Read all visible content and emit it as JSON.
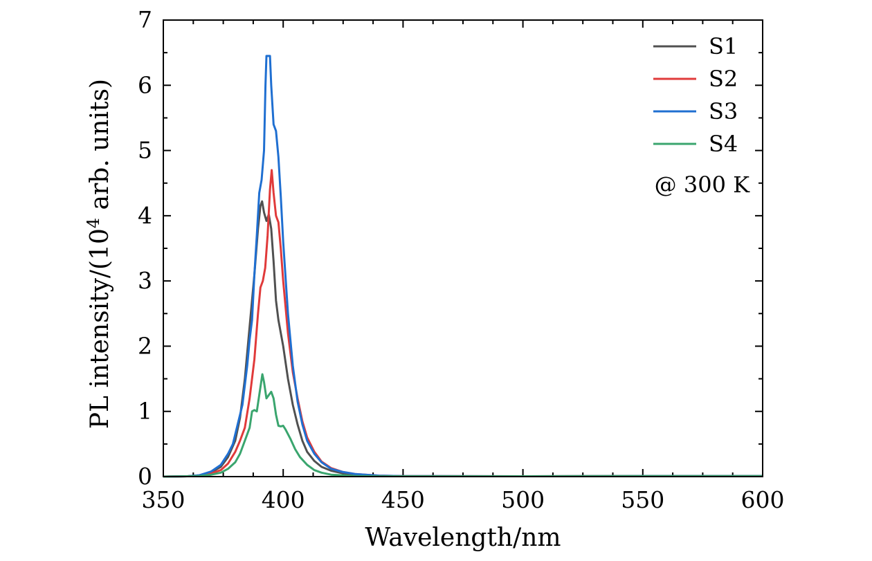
{
  "chart_data": {
    "type": "line",
    "title": "",
    "xlabel": "Wavelength/nm",
    "ylabel_prefix": "PL intensity/(10",
    "ylabel_exponent": "4",
    "ylabel_suffix": " arb. units)",
    "xlim": [
      350,
      600
    ],
    "ylim": [
      0,
      7
    ],
    "x_ticks": [
      350,
      400,
      450,
      500,
      550,
      600
    ],
    "x_minor_step": 12.5,
    "y_ticks": [
      0,
      1,
      2,
      3,
      4,
      5,
      6,
      7
    ],
    "y_minor_step": 0.5,
    "legend_position": "top-right",
    "annotation": "@ 300 K",
    "series": [
      {
        "name": "S1",
        "color": "#505050",
        "points": [
          [
            350,
            0
          ],
          [
            360,
            0.005
          ],
          [
            365,
            0.02
          ],
          [
            370,
            0.07
          ],
          [
            374,
            0.15
          ],
          [
            377,
            0.3
          ],
          [
            380,
            0.55
          ],
          [
            382,
            0.9
          ],
          [
            384,
            1.5
          ],
          [
            386,
            2.3
          ],
          [
            388,
            3.1
          ],
          [
            389.5,
            3.8
          ],
          [
            390.5,
            4.15
          ],
          [
            391.2,
            4.22
          ],
          [
            392,
            4.05
          ],
          [
            393,
            3.92
          ],
          [
            394,
            4.02
          ],
          [
            395,
            3.8
          ],
          [
            396,
            3.3
          ],
          [
            397,
            2.7
          ],
          [
            398,
            2.4
          ],
          [
            400,
            2.0
          ],
          [
            402,
            1.5
          ],
          [
            404,
            1.1
          ],
          [
            406,
            0.8
          ],
          [
            408,
            0.55
          ],
          [
            410,
            0.38
          ],
          [
            413,
            0.24
          ],
          [
            416,
            0.15
          ],
          [
            420,
            0.09
          ],
          [
            425,
            0.05
          ],
          [
            430,
            0.03
          ],
          [
            440,
            0.01
          ],
          [
            450,
            0.005
          ],
          [
            500,
            0.005
          ],
          [
            550,
            0.01
          ],
          [
            600,
            0.01
          ]
        ]
      },
      {
        "name": "S2",
        "color": "#e03a3a",
        "points": [
          [
            350,
            0
          ],
          [
            360,
            0.005
          ],
          [
            365,
            0.015
          ],
          [
            370,
            0.05
          ],
          [
            374,
            0.1
          ],
          [
            377,
            0.2
          ],
          [
            380,
            0.38
          ],
          [
            382,
            0.55
          ],
          [
            384,
            0.75
          ],
          [
            386,
            1.2
          ],
          [
            388,
            1.8
          ],
          [
            389.5,
            2.5
          ],
          [
            390.5,
            2.9
          ],
          [
            391.5,
            3.0
          ],
          [
            392.5,
            3.2
          ],
          [
            393.5,
            3.7
          ],
          [
            394.5,
            4.4
          ],
          [
            395.2,
            4.7
          ],
          [
            396,
            4.35
          ],
          [
            397,
            4.0
          ],
          [
            398,
            3.9
          ],
          [
            399,
            3.5
          ],
          [
            400,
            3.0
          ],
          [
            402,
            2.2
          ],
          [
            404,
            1.6
          ],
          [
            406,
            1.2
          ],
          [
            408,
            0.85
          ],
          [
            410,
            0.6
          ],
          [
            413,
            0.38
          ],
          [
            416,
            0.23
          ],
          [
            420,
            0.13
          ],
          [
            425,
            0.07
          ],
          [
            430,
            0.04
          ],
          [
            440,
            0.015
          ],
          [
            450,
            0.008
          ],
          [
            500,
            0.005
          ],
          [
            550,
            0.01
          ],
          [
            600,
            0.01
          ]
        ]
      },
      {
        "name": "S3",
        "color": "#1f6fd1",
        "points": [
          [
            350,
            0
          ],
          [
            360,
            0.005
          ],
          [
            365,
            0.02
          ],
          [
            370,
            0.08
          ],
          [
            374,
            0.18
          ],
          [
            377,
            0.35
          ],
          [
            379,
            0.5
          ],
          [
            381,
            0.8
          ],
          [
            383,
            1.1
          ],
          [
            385,
            1.7
          ],
          [
            386,
            2.1
          ],
          [
            387,
            2.4
          ],
          [
            388,
            3.1
          ],
          [
            389,
            3.7
          ],
          [
            390,
            4.35
          ],
          [
            391,
            4.55
          ],
          [
            392,
            5.0
          ],
          [
            392.6,
            6.0
          ],
          [
            393,
            6.45
          ],
          [
            394.5,
            6.45
          ],
          [
            395,
            6.0
          ],
          [
            396,
            5.4
          ],
          [
            397,
            5.3
          ],
          [
            398,
            4.9
          ],
          [
            399,
            4.3
          ],
          [
            400,
            3.6
          ],
          [
            402,
            2.5
          ],
          [
            404,
            1.7
          ],
          [
            406,
            1.15
          ],
          [
            408,
            0.8
          ],
          [
            410,
            0.55
          ],
          [
            413,
            0.35
          ],
          [
            416,
            0.22
          ],
          [
            420,
            0.12
          ],
          [
            425,
            0.07
          ],
          [
            430,
            0.04
          ],
          [
            440,
            0.015
          ],
          [
            450,
            0.008
          ],
          [
            500,
            0.005
          ],
          [
            550,
            0.01
          ],
          [
            600,
            0.01
          ]
        ]
      },
      {
        "name": "S4",
        "color": "#3aa56e",
        "points": [
          [
            350,
            0
          ],
          [
            360,
            0.005
          ],
          [
            365,
            0.01
          ],
          [
            370,
            0.03
          ],
          [
            374,
            0.06
          ],
          [
            377,
            0.12
          ],
          [
            380,
            0.22
          ],
          [
            382,
            0.35
          ],
          [
            384,
            0.55
          ],
          [
            386,
            0.75
          ],
          [
            387,
            1.0
          ],
          [
            388,
            1.02
          ],
          [
            389,
            1.0
          ],
          [
            390,
            1.25
          ],
          [
            391.3,
            1.57
          ],
          [
            392,
            1.45
          ],
          [
            393,
            1.2
          ],
          [
            394,
            1.25
          ],
          [
            395,
            1.3
          ],
          [
            396,
            1.2
          ],
          [
            397,
            0.95
          ],
          [
            398,
            0.78
          ],
          [
            399,
            0.77
          ],
          [
            400,
            0.78
          ],
          [
            401,
            0.72
          ],
          [
            403,
            0.58
          ],
          [
            405,
            0.42
          ],
          [
            407,
            0.3
          ],
          [
            410,
            0.18
          ],
          [
            413,
            0.1
          ],
          [
            416,
            0.06
          ],
          [
            420,
            0.03
          ],
          [
            430,
            0.01
          ],
          [
            440,
            0.005
          ],
          [
            500,
            0.005
          ],
          [
            550,
            0.008
          ],
          [
            600,
            0.008
          ]
        ]
      }
    ]
  }
}
